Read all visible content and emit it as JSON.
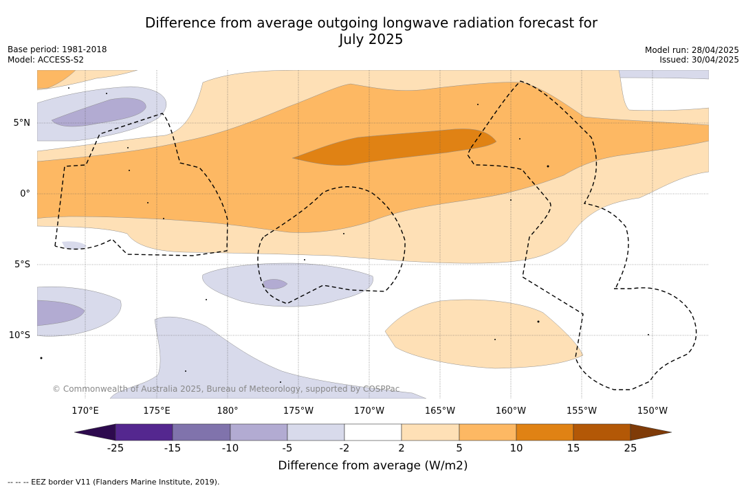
{
  "title_line1": "Difference from average outgoing longwave radiation forecast for",
  "title_line2": "July 2025",
  "meta": {
    "base_period": "Base period: 1981-2018",
    "model": "Model: ACCESS-S2",
    "model_run": "Model run: 28/04/2025",
    "issued": "Issued: 30/04/2025"
  },
  "map": {
    "lat_labels": [
      "5°N",
      "0°",
      "5°S",
      "10°S"
    ],
    "lon_labels": [
      "170°E",
      "175°E",
      "180°",
      "175°W",
      "170°W",
      "165°W",
      "160°W",
      "155°W",
      "150°W"
    ],
    "copyright": "© Commonwealth of Australia 2025, Bureau of Meteorology, supported by COSPPac"
  },
  "colorbar": {
    "title": "Difference from average (W/m2)",
    "ticks": [
      "-25",
      "-15",
      "-10",
      "-5",
      "-2",
      "2",
      "5",
      "10",
      "15",
      "25"
    ],
    "colors": {
      "lt_neg25": "#2d0a4e",
      "n25_n15": "#54278f",
      "n15_n10": "#8073ac",
      "n10_n5": "#b2abd2",
      "n5_n2": "#d8daeb",
      "n2_p2": "#ffffff",
      "p2_p5": "#fee0b6",
      "p5_p10": "#fdb863",
      "p10_p15": "#e08214",
      "p15_p25": "#b35806",
      "gt_p25": "#7f3b08"
    }
  },
  "footnote": "--  --  -- EEZ border V11 (Flanders Marine Institute, 2019)."
}
